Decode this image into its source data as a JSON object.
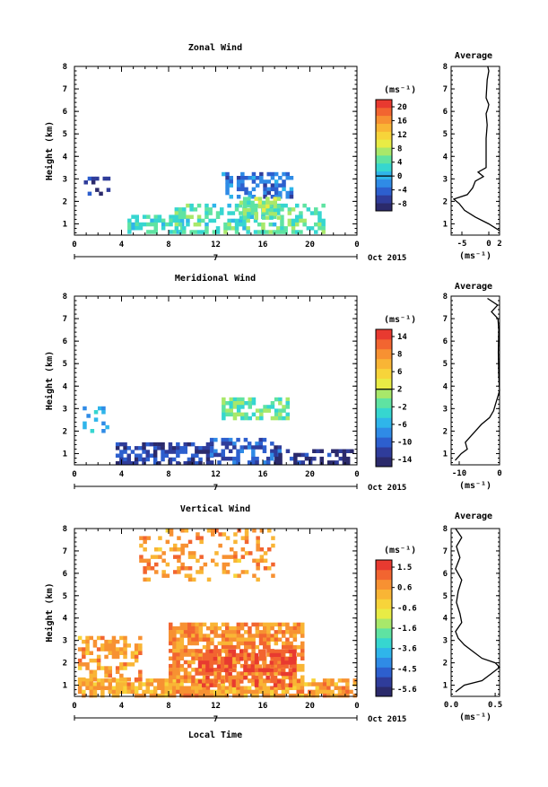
{
  "xlabel": "Local Time",
  "date_label": "Oct 2015",
  "day_label": "7",
  "ylabel": "Height (km)",
  "avg_title": "Average",
  "unit_label": "(ms⁻¹)",
  "chart_data": [
    {
      "type": "heatmap",
      "title": "Zonal Wind",
      "xlabel": "",
      "ylabel": "Height (km)",
      "x_range": [
        0,
        24
      ],
      "x_ticks": [
        "0",
        "4",
        "8",
        "12",
        "16",
        "20",
        "0"
      ],
      "y_range": [
        0.5,
        8
      ],
      "y_ticks": [
        "1",
        "2",
        "3",
        "4",
        "5",
        "6",
        "7",
        "8"
      ],
      "colorbar_ticks": [
        "20",
        "16",
        "12",
        "8",
        "4",
        "0",
        "-4",
        "-8"
      ],
      "colorbar_range": [
        -10,
        22
      ],
      "regions": [
        {
          "x": [
            0.8,
            3.0
          ],
          "y": [
            2.4,
            3.1
          ],
          "value": -7,
          "density": 0.35
        },
        {
          "x": [
            4.5,
            9.0
          ],
          "y": [
            0.7,
            1.4
          ],
          "value": 3,
          "density": 0.6
        },
        {
          "x": [
            8.5,
            21.0
          ],
          "y": [
            0.7,
            1.9
          ],
          "value": 4,
          "density": 0.55
        },
        {
          "x": [
            12.5,
            18.5
          ],
          "y": [
            2.2,
            3.3
          ],
          "value": -3,
          "density": 0.5
        },
        {
          "x": [
            14.0,
            17.5
          ],
          "y": [
            1.3,
            2.2
          ],
          "value": 6,
          "density": 0.6
        }
      ],
      "average_profile": {
        "x_range": [
          -7,
          2
        ],
        "x_ticks": [
          "-5",
          "0",
          "2"
        ],
        "height": [
          0.7,
          1.0,
          1.3,
          1.6,
          1.9,
          2.1,
          2.3,
          2.6,
          2.9,
          3.1,
          3.3,
          3.5,
          3.8,
          4.2,
          4.8,
          5.4,
          5.9,
          6.1,
          6.3,
          6.6,
          7.0,
          7.4,
          7.8,
          8.0
        ],
        "value": [
          2.0,
          0.0,
          -2.5,
          -4.5,
          -5.5,
          -6.5,
          -4.0,
          -3.0,
          -2.5,
          -1.0,
          -2.0,
          -0.5,
          -0.5,
          -0.5,
          -0.5,
          -0.3,
          -0.5,
          -0.2,
          0.0,
          -0.5,
          -0.4,
          -0.3,
          0.0,
          -0.2
        ]
      }
    },
    {
      "type": "heatmap",
      "title": "Meridional Wind",
      "xlabel": "",
      "ylabel": "Height (km)",
      "x_range": [
        0,
        24
      ],
      "x_ticks": [
        "0",
        "4",
        "8",
        "12",
        "16",
        "20",
        "0"
      ],
      "y_range": [
        0.5,
        8
      ],
      "y_ticks": [
        "1",
        "2",
        "3",
        "4",
        "5",
        "6",
        "7",
        "8"
      ],
      "colorbar_ticks": [
        "14",
        "8",
        "6",
        "2",
        "-2",
        "-6",
        "-10",
        "-14"
      ],
      "colorbar_range": [
        -16,
        16
      ],
      "regions": [
        {
          "x": [
            0.7,
            2.8
          ],
          "y": [
            2.0,
            3.1
          ],
          "value": -6,
          "density": 0.35
        },
        {
          "x": [
            3.5,
            11.5
          ],
          "y": [
            0.6,
            1.5
          ],
          "value": -12,
          "density": 0.6
        },
        {
          "x": [
            11.5,
            17.5
          ],
          "y": [
            0.6,
            1.7
          ],
          "value": -11,
          "density": 0.6
        },
        {
          "x": [
            12.5,
            18.0
          ],
          "y": [
            2.6,
            3.5
          ],
          "value": -1,
          "density": 0.6
        },
        {
          "x": [
            17.0,
            23.5
          ],
          "y": [
            0.6,
            1.2
          ],
          "value": -14,
          "density": 0.5
        }
      ],
      "average_profile": {
        "x_range": [
          -12,
          0
        ],
        "x_ticks": [
          "-10",
          "0"
        ],
        "height": [
          0.7,
          1.0,
          1.2,
          1.5,
          1.8,
          2.0,
          2.3,
          2.6,
          2.9,
          3.2,
          3.5,
          3.8,
          4.5,
          5.5,
          6.5,
          7.0,
          7.3,
          7.6,
          7.9
        ],
        "value": [
          -11.0,
          -9.5,
          -8.0,
          -8.5,
          -7.0,
          -6.0,
          -4.5,
          -2.5,
          -1.5,
          -1.0,
          -0.5,
          0.0,
          -0.2,
          -0.3,
          -0.2,
          -0.4,
          -2.0,
          -0.5,
          -3.0
        ]
      }
    },
    {
      "type": "heatmap",
      "title": "Vertical Wind",
      "xlabel": "Local Time",
      "ylabel": "Height (km)",
      "x_range": [
        0,
        24
      ],
      "x_ticks": [
        "0",
        "4",
        "8",
        "12",
        "16",
        "20",
        "0"
      ],
      "y_range": [
        0.5,
        8
      ],
      "y_ticks": [
        "1",
        "2",
        "3",
        "4",
        "5",
        "6",
        "7",
        "8"
      ],
      "colorbar_ticks": [
        "1.5",
        "0.6",
        "-0.6",
        "-1.6",
        "-3.6",
        "-4.5",
        "-5.6"
      ],
      "colorbar_range": [
        -6,
        2
      ],
      "regions": [
        {
          "x": [
            0.3,
            23.7
          ],
          "y": [
            0.6,
            1.3
          ],
          "value": 0.2,
          "density": 0.8
        },
        {
          "x": [
            0.3,
            5.5
          ],
          "y": [
            1.3,
            3.2
          ],
          "value": 0.3,
          "density": 0.55
        },
        {
          "x": [
            8.0,
            19.5
          ],
          "y": [
            1.2,
            3.8
          ],
          "value": 0.6,
          "density": 0.75
        },
        {
          "x": [
            10.5,
            18.5
          ],
          "y": [
            1.0,
            2.6
          ],
          "value": 1.4,
          "density": 0.55
        },
        {
          "x": [
            5.5,
            17.0
          ],
          "y": [
            5.8,
            8.0
          ],
          "value": 0.4,
          "density": 0.25
        }
      ],
      "average_profile": {
        "x_range": [
          0.0,
          0.55
        ],
        "x_ticks": [
          "0.0",
          "0.5"
        ],
        "height": [
          0.7,
          1.0,
          1.2,
          1.5,
          1.8,
          2.0,
          2.2,
          2.5,
          2.8,
          3.1,
          3.4,
          3.8,
          4.2,
          4.7,
          5.2,
          5.7,
          6.2,
          6.7,
          7.2,
          7.6,
          8.0
        ],
        "value": [
          0.05,
          0.15,
          0.35,
          0.45,
          0.55,
          0.5,
          0.35,
          0.25,
          0.15,
          0.08,
          0.05,
          0.12,
          0.1,
          0.06,
          0.08,
          0.12,
          0.05,
          0.1,
          0.06,
          0.12,
          0.05
        ]
      }
    }
  ]
}
